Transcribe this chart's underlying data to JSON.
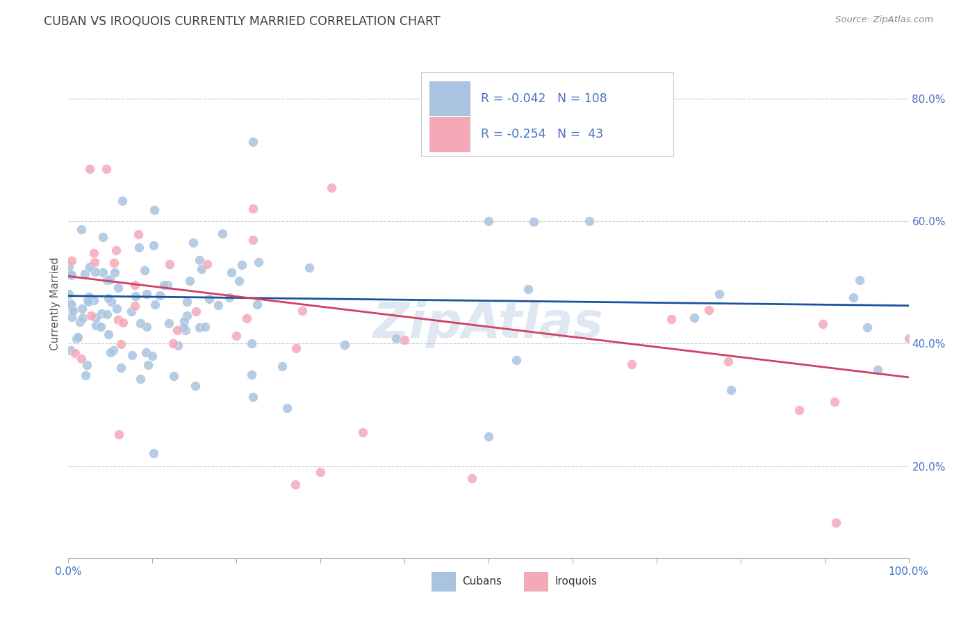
{
  "title": "CUBAN VS IROQUOIS CURRENTLY MARRIED CORRELATION CHART",
  "source": "Source: ZipAtlas.com",
  "ylabel": "Currently Married",
  "watermark": "ZipAtlas",
  "legend_blue_R": "-0.042",
  "legend_blue_N": "108",
  "legend_pink_R": "-0.254",
  "legend_pink_N": "43",
  "blue_color": "#a8c4e0",
  "pink_color": "#f4a8b8",
  "line_blue": "#1a52a0",
  "line_pink": "#d04060",
  "axis_color": "#4472c4",
  "title_color": "#404040",
  "background": "#ffffff",
  "grid_color": "#c8c8c8",
  "xmin": 0.0,
  "xmax": 1.0,
  "ymin": 0.05,
  "ymax": 0.88,
  "blue_line_y0": 0.478,
  "blue_line_y1": 0.462,
  "pink_line_y0": 0.51,
  "pink_line_y1": 0.345,
  "yticks": [
    0.2,
    0.4,
    0.6,
    0.8
  ],
  "ytick_labels": [
    "20.0%",
    "40.0%",
    "60.0%",
    "80.0%"
  ]
}
